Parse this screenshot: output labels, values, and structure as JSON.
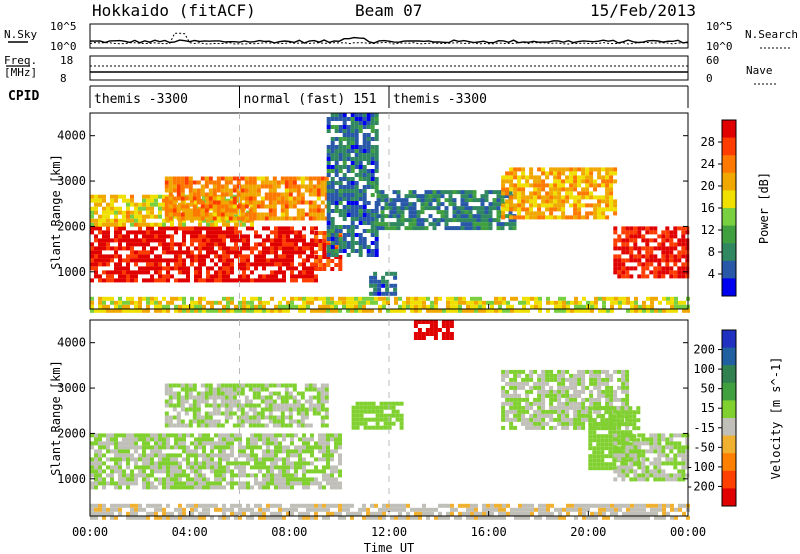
{
  "header": {
    "radar": "Hokkaido (fitACF)",
    "beam": "Beam 07",
    "date": "15/Feb/2013"
  },
  "noise_panel": {
    "left_label": "N.Sky",
    "left_ticks": [
      "10^5",
      "10^0"
    ],
    "right_label": "N.Search",
    "right_ticks": [
      "10^5",
      "10^0"
    ]
  },
  "freq_panel": {
    "left_label_line1": "Freq.",
    "left_label_line2": "[MHz]",
    "left_ticks": [
      "18",
      "8"
    ],
    "right_label": "Nave",
    "right_ticks": [
      "60",
      "0"
    ]
  },
  "cpid_panel": {
    "label": "CPID",
    "segments": [
      {
        "start_hour": 0,
        "end_hour": 6,
        "name": "themis -3300"
      },
      {
        "start_hour": 6,
        "end_hour": 12,
        "name": "normal (fast) 151"
      },
      {
        "start_hour": 12,
        "end_hour": 24,
        "name": "themis -3300"
      }
    ]
  },
  "power_colorbar": {
    "label": "Power [dB]",
    "ticks": [
      "28",
      "24",
      "20",
      "16",
      "12",
      "8",
      "4"
    ],
    "colors": [
      "#e00000",
      "#ff3c00",
      "#ff7800",
      "#f0a800",
      "#f0e000",
      "#78d040",
      "#40a040",
      "#308860",
      "#2a58a8",
      "#0000f0"
    ]
  },
  "velocity_colorbar": {
    "label": "Velocity [m s^-1]",
    "ticks": [
      "200",
      "100",
      "50",
      "15",
      "-15",
      "-50",
      "-100",
      "-200"
    ],
    "colors": [
      "#2030c0",
      "#2060a0",
      "#308050",
      "#40a040",
      "#80d030",
      "#c0c0b8",
      "#f0b030",
      "#ff8000",
      "#ff4000",
      "#e00000"
    ]
  },
  "chart_data": [
    {
      "type": "heatmap",
      "title": "",
      "xlabel": "Time UT",
      "ylabel": "Slant Range [km]",
      "xlim_hours": [
        0,
        24
      ],
      "xticks": [
        "00:00",
        "04:00",
        "08:00",
        "12:00",
        "16:00",
        "20:00",
        "00:00"
      ],
      "ylim": [
        180,
        4500
      ],
      "yticks": [
        "1000",
        "2000",
        "3000",
        "4000"
      ],
      "colorbar": "power",
      "regions": [
        {
          "x0": 0.0,
          "x1": 9.0,
          "y0": 800,
          "y1": 2000,
          "level": 30
        },
        {
          "x0": 9.0,
          "x1": 10.0,
          "y0": 1100,
          "y1": 1900,
          "level": 26
        },
        {
          "x0": 0.0,
          "x1": 6.5,
          "y0": 2000,
          "y1": 2700,
          "level": 18
        },
        {
          "x0": 3.0,
          "x1": 9.5,
          "y0": 2200,
          "y1": 3100,
          "level": 22
        },
        {
          "x0": 9.5,
          "x1": 11.5,
          "y0": 1400,
          "y1": 4500,
          "level": 5
        },
        {
          "x0": 11.5,
          "x1": 17.0,
          "y0": 2000,
          "y1": 2800,
          "level": 6
        },
        {
          "x0": 16.5,
          "x1": 21.0,
          "y0": 2200,
          "y1": 3300,
          "level": 20
        },
        {
          "x0": 21.0,
          "x1": 24.0,
          "y0": 900,
          "y1": 2000,
          "level": 29
        },
        {
          "x0": 0.0,
          "x1": 24.0,
          "y0": 180,
          "y1": 450,
          "level": 17
        },
        {
          "x0": 11.2,
          "x1": 12.2,
          "y0": 500,
          "y1": 1000,
          "level": 5
        }
      ]
    },
    {
      "type": "heatmap",
      "title": "",
      "xlabel": "Time UT",
      "ylabel": "Slant Range [km]",
      "xlim_hours": [
        0,
        24
      ],
      "xticks": [
        "00:00",
        "04:00",
        "08:00",
        "12:00",
        "16:00",
        "20:00",
        "00:00"
      ],
      "ylim": [
        180,
        4500
      ],
      "yticks": [
        "1000",
        "2000",
        "3000",
        "4000"
      ],
      "colorbar": "velocity",
      "regions": [
        {
          "x0": 0.0,
          "x1": 10.0,
          "y0": 800,
          "y1": 2000,
          "level": 0
        },
        {
          "x0": 3.0,
          "x1": 9.5,
          "y0": 2200,
          "y1": 3100,
          "level": 0
        },
        {
          "x0": 10.5,
          "x1": 12.5,
          "y0": 2100,
          "y1": 2700,
          "level": 30
        },
        {
          "x0": 16.5,
          "x1": 21.5,
          "y0": 2100,
          "y1": 3400,
          "level": 0
        },
        {
          "x0": 20.0,
          "x1": 22.0,
          "y0": 1200,
          "y1": 2600,
          "level": 30
        },
        {
          "x0": 21.0,
          "x1": 24.0,
          "y0": 1000,
          "y1": 2000,
          "level": 0
        },
        {
          "x0": 0.0,
          "x1": 24.0,
          "y0": 180,
          "y1": 450,
          "level": -40
        },
        {
          "x0": 13.0,
          "x1": 14.5,
          "y0": 4100,
          "y1": 4500,
          "level": -200
        }
      ]
    }
  ]
}
